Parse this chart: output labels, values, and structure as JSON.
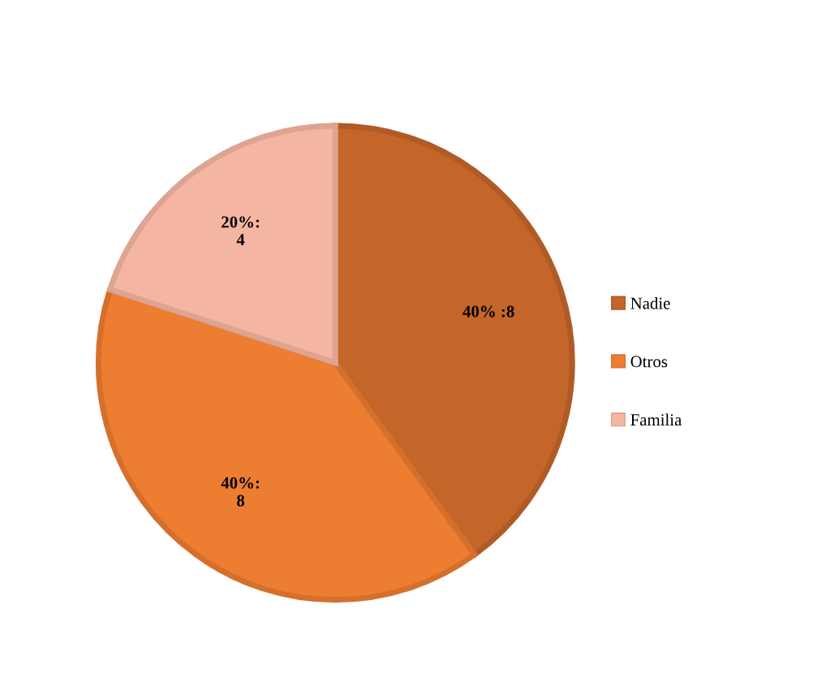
{
  "chart_data": {
    "type": "pie",
    "categories": [
      "Nadie",
      "Otros",
      "Familia"
    ],
    "values": [
      8,
      8,
      4
    ],
    "colors": [
      "#c4652a",
      "#ed7d31",
      "#f4b6a2"
    ],
    "value_labels": [
      "40% :8",
      "40%:\n8",
      "20%:\n4"
    ],
    "legend": "right"
  }
}
